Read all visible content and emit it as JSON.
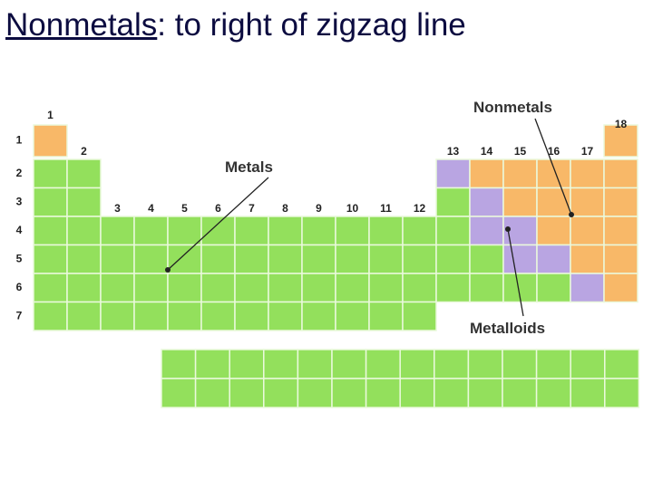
{
  "title": {
    "term": "Nonmetals",
    "rest": ": to right of zigzag line"
  },
  "groups": [
    1,
    2,
    3,
    4,
    5,
    6,
    7,
    8,
    9,
    10,
    11,
    12,
    13,
    14,
    15,
    16,
    17,
    18
  ],
  "periods": [
    1,
    2,
    3,
    4,
    5,
    6,
    7
  ],
  "labels": {
    "nonmetals": "Nonmetals",
    "metals": "Metals",
    "metalloids": "Metalloids"
  }
}
